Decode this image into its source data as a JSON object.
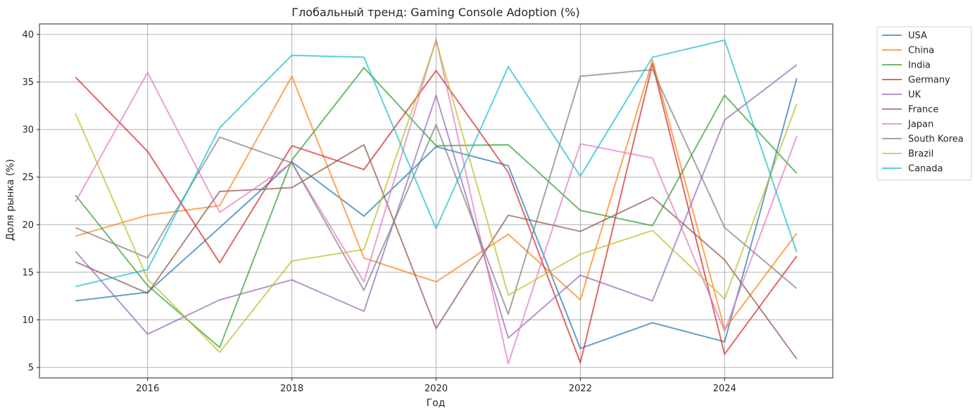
{
  "chart_data": {
    "type": "line",
    "title": "Глобальный тренд: Gaming Console Adoption (%)",
    "xlabel": "Год",
    "ylabel": "Доля рынка (%)",
    "x": [
      2015,
      2016,
      2017,
      2018,
      2019,
      2020,
      2021,
      2022,
      2023,
      2024,
      2025
    ],
    "xlim": [
      2014.5,
      2025.5
    ],
    "ylim": [
      3.9,
      41.1
    ],
    "xticks": [
      2016,
      2018,
      2020,
      2022,
      2024
    ],
    "yticks": [
      5,
      10,
      15,
      20,
      25,
      30,
      35,
      40
    ],
    "grid": true,
    "legend_position": "outside-top-right",
    "series": [
      {
        "name": "USA",
        "color": "#1f77b4",
        "values": [
          12.0,
          12.9,
          19.7,
          26.6,
          20.9,
          28.2,
          26.2,
          7.0,
          9.7,
          7.7,
          35.4
        ]
      },
      {
        "name": "China",
        "color": "#ff7f0e",
        "values": [
          18.8,
          21.0,
          22.0,
          35.6,
          16.5,
          14.0,
          19.0,
          12.1,
          37.3,
          9.0,
          19.1
        ]
      },
      {
        "name": "India",
        "color": "#2ca02c",
        "values": [
          23.1,
          13.6,
          7.1,
          26.8,
          36.5,
          28.3,
          28.4,
          21.5,
          19.9,
          33.6,
          25.4
        ]
      },
      {
        "name": "Germany",
        "color": "#d62728",
        "values": [
          35.5,
          27.7,
          16.0,
          28.3,
          25.8,
          36.2,
          25.5,
          5.5,
          36.9,
          6.4,
          16.7
        ]
      },
      {
        "name": "UK",
        "color": "#9467bd",
        "values": [
          17.2,
          8.5,
          12.1,
          14.2,
          10.9,
          33.6,
          8.1,
          14.7,
          12.0,
          31.0,
          36.8
        ]
      },
      {
        "name": "France",
        "color": "#8c564b",
        "values": [
          16.1,
          12.8,
          23.5,
          23.9,
          28.4,
          9.1,
          21.0,
          19.3,
          22.9,
          16.3,
          5.9
        ]
      },
      {
        "name": "Japan",
        "color": "#e377c2",
        "values": [
          22.4,
          36.0,
          21.3,
          26.5,
          14.0,
          39.5,
          5.4,
          28.5,
          27.0,
          8.8,
          29.3
        ]
      },
      {
        "name": "South Korea",
        "color": "#7f7f7f",
        "values": [
          19.7,
          16.5,
          29.2,
          26.5,
          13.1,
          30.5,
          10.6,
          35.6,
          36.3,
          19.7,
          13.3
        ]
      },
      {
        "name": "Brazil",
        "color": "#bcbd22",
        "values": [
          31.7,
          14.3,
          6.6,
          16.2,
          17.4,
          39.3,
          12.6,
          16.9,
          19.4,
          12.2,
          32.7
        ]
      },
      {
        "name": "Canada",
        "color": "#17becf",
        "values": [
          13.5,
          15.3,
          30.2,
          37.8,
          37.6,
          19.6,
          36.6,
          25.1,
          37.6,
          39.4,
          17.1
        ]
      }
    ]
  }
}
